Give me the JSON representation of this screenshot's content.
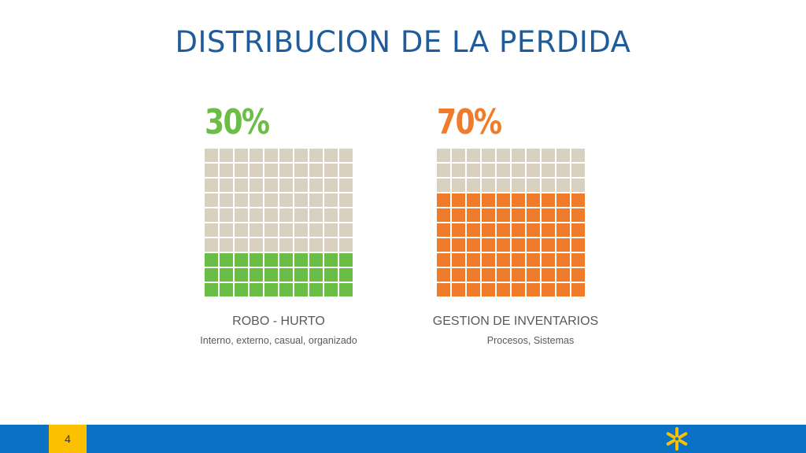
{
  "slide": {
    "title": "DISTRIBUCION DE LA PERDIDA",
    "page_number": "4"
  },
  "colors": {
    "title": "#1f5c99",
    "empty_cell": "#d9d1bf",
    "robo": "#6cbd45",
    "gestion": "#f07b2a",
    "footer": "#0a71c4",
    "page_box": "#fcc000",
    "spark": "#fcc000"
  },
  "chart_data": [
    {
      "type": "waffle",
      "percent_label": "30%",
      "value": 30,
      "total": 100,
      "label": "ROBO - HURTO",
      "sublabel": "Interno, externo, casual, organizado",
      "color": "#6cbd45"
    },
    {
      "type": "waffle",
      "percent_label": "70%",
      "value": 70,
      "total": 100,
      "label": "GESTION DE INVENTARIOS",
      "sublabel": "Procesos, Sistemas",
      "color": "#f07b2a"
    }
  ],
  "icons": {
    "logo": "walmart-spark-icon"
  }
}
